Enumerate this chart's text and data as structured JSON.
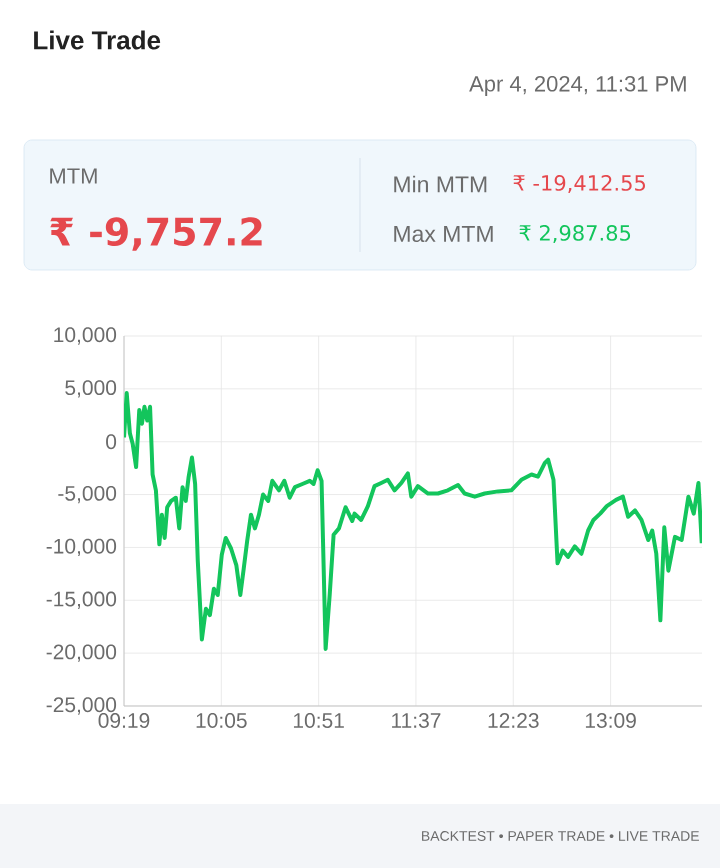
{
  "chart_data": {
    "type": "line",
    "title": "Live Trade",
    "annotations": [
      "Apr 4, 2024, 11:31 PM",
      "MTM",
      "₹ -9,757.2",
      "Min MTM",
      "₹ -19,412.55",
      "Max MTM",
      "₹ 2,987.85",
      "BACKTEST • PAPER TRADE • LIVE TRADE"
    ],
    "x": [
      9.317,
      9.338,
      9.363,
      9.385,
      9.412,
      9.437,
      9.458,
      9.478,
      9.5,
      9.522,
      9.542,
      9.568,
      9.595,
      9.615,
      9.637,
      9.657,
      9.688,
      9.725,
      9.752,
      9.778,
      9.803,
      9.825,
      9.852,
      9.877,
      9.898,
      9.93,
      9.962,
      9.993,
      10.025,
      10.055,
      10.087,
      10.118,
      10.16,
      10.202,
      10.233,
      10.26,
      10.287,
      10.317,
      10.348,
      10.38,
      10.412,
      10.453,
      10.485,
      10.538,
      10.58,
      10.622,
      10.663,
      10.722,
      10.78,
      10.81,
      10.842,
      10.873,
      10.905,
      10.937,
      10.968,
      11.01,
      11.062,
      11.115,
      11.133,
      11.185,
      11.238,
      11.29,
      11.343,
      11.395,
      11.448,
      11.502,
      11.553,
      11.58,
      11.632,
      11.712,
      11.79,
      11.868,
      11.948,
      12.0,
      12.08,
      12.158,
      12.263,
      12.368,
      12.447,
      12.527,
      12.578,
      12.632,
      12.658,
      12.7,
      12.732,
      12.773,
      12.815,
      12.868,
      12.92,
      12.973,
      13.015,
      13.068,
      13.12,
      13.193,
      13.247,
      13.288,
      13.342,
      13.393,
      13.447,
      13.478,
      13.51,
      13.542,
      13.573,
      13.605,
      13.657,
      13.71,
      13.763,
      13.805,
      13.842,
      13.868
    ],
    "values": [
      400,
      4600,
      800,
      -200,
      -2400,
      3000,
      1700,
      3300,
      2000,
      3300,
      -3100,
      -4600,
      -9700,
      -6900,
      -9100,
      -6200,
      -5600,
      -5300,
      -8200,
      -4300,
      -5600,
      -3400,
      -1500,
      -4000,
      -11300,
      -18700,
      -15800,
      -16400,
      -13900,
      -14500,
      -10700,
      -9100,
      -10100,
      -11700,
      -14500,
      -12000,
      -9400,
      -6900,
      -8200,
      -6900,
      -5000,
      -5600,
      -3700,
      -4600,
      -3700,
      -5300,
      -4300,
      -4000,
      -3700,
      -4000,
      -2700,
      -3700,
      -19600,
      -14500,
      -8800,
      -8200,
      -6200,
      -7500,
      -6800,
      -7400,
      -6100,
      -4200,
      -3900,
      -3600,
      -4600,
      -3900,
      -3000,
      -5200,
      -4200,
      -4900,
      -4900,
      -4600,
      -4100,
      -4900,
      -5200,
      -4900,
      -4700,
      -4600,
      -3600,
      -3100,
      -3300,
      -2000,
      -1700,
      -3600,
      -11500,
      -10300,
      -10900,
      -9900,
      -10600,
      -8400,
      -7400,
      -6800,
      -6100,
      -5500,
      -5200,
      -7100,
      -6500,
      -7400,
      -9300,
      -8400,
      -10600,
      -16900,
      -8100,
      -12200,
      -9000,
      -9300,
      -5200,
      -6800,
      -3900,
      -9600
    ],
    "color": "#13c55c",
    "xlim": [
      9.3167,
      13.87
    ],
    "xticks": [
      {
        "value": 9.3167,
        "label": "09:19"
      },
      {
        "value": 10.0833,
        "label": "10:05"
      },
      {
        "value": 10.85,
        "label": "10:51"
      },
      {
        "value": 11.6167,
        "label": "11:37"
      },
      {
        "value": 12.3833,
        "label": "12:23"
      },
      {
        "value": 13.15,
        "label": "13:09"
      }
    ],
    "ylim": [
      -25000,
      10000
    ],
    "yticks": [
      {
        "value": 10000,
        "label": "10,000"
      },
      {
        "value": 5000,
        "label": "5,000"
      },
      {
        "value": 0,
        "label": "0"
      },
      {
        "value": -5000,
        "label": "-5,000"
      },
      {
        "value": -10000,
        "label": "-10,000"
      },
      {
        "value": -15000,
        "label": "-15,000"
      },
      {
        "value": -20000,
        "label": "-20,000"
      },
      {
        "value": -25000,
        "label": "-25,000"
      }
    ],
    "grid": true
  }
}
